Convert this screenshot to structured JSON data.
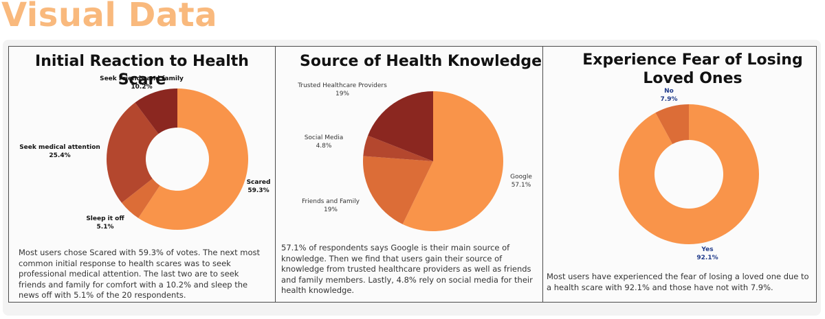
{
  "page": {
    "title": "Visual Data"
  },
  "colors": {
    "title": "#f9b97d",
    "orange": "#f9944a",
    "rust": "#dc6d37",
    "brick": "#b4472e",
    "maroon": "#8b2720",
    "blue": "#1f3a8a"
  },
  "chart_data": [
    {
      "type": "pie",
      "donut": true,
      "title": "Initial Reaction to Health Scare",
      "slices": [
        {
          "label": "Scared",
          "value": 59.3,
          "display": "59.3%",
          "color": "#f9944a"
        },
        {
          "label": "Sleep it off",
          "value": 5.1,
          "display": "5.1%",
          "color": "#dc6d37"
        },
        {
          "label": "Seek medical attention",
          "value": 25.4,
          "display": "25.4%",
          "color": "#b4472e"
        },
        {
          "label": "Seek Friends and family",
          "value": 10.2,
          "display": "10.2%",
          "color": "#8b2720"
        }
      ],
      "description": "Most users chose Scared with 59.3% of votes. The next most common initial response to health scares was to seek professional medical attention. The last two are to seek friends and family for comfort with a 10.2% and sleep the news off with 5.1% of the 20 respondents."
    },
    {
      "type": "pie",
      "donut": false,
      "title": "Source of Health Knowledge",
      "slices": [
        {
          "label": "Google",
          "value": 57.1,
          "display": "57.1%",
          "color": "#f9944a"
        },
        {
          "label": "Friends and Family",
          "value": 19,
          "display": "19%",
          "color": "#dc6d37"
        },
        {
          "label": "Social Media",
          "value": 4.8,
          "display": "4.8%",
          "color": "#b4472e"
        },
        {
          "label": "Trusted Healthcare Providers",
          "value": 19,
          "display": "19%",
          "color": "#8b2720"
        }
      ],
      "description": "57.1% of respondents says Google is their main source of knowledge. Then we find that users gain their source of knowledge from trusted healthcare providers as well as friends and family members. Lastly, 4.8% rely on social media for their health knowledge."
    },
    {
      "type": "pie",
      "donut": true,
      "title": "Experience Fear of Losing Loved Ones",
      "slices": [
        {
          "label": "Yes",
          "value": 92.1,
          "display": "92.1%",
          "color": "#f9944a"
        },
        {
          "label": "No",
          "value": 7.9,
          "display": "7.9%",
          "color": "#dc6d37"
        }
      ],
      "description": "Most users have experienced the fear of losing a loved one due to a health scare with 92.1% and those have not with 7.9%."
    }
  ]
}
